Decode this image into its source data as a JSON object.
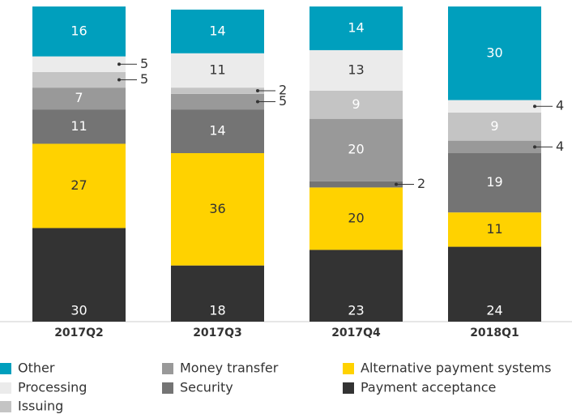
{
  "chart_data": {
    "type": "stacked_bar",
    "categories": [
      "2017Q2",
      "2017Q3",
      "2017Q4",
      "2018Q1"
    ],
    "series": [
      {
        "name": "Payment acceptance",
        "color": "#333333",
        "values": [
          30,
          18,
          23,
          24
        ]
      },
      {
        "name": "Alternative payment systems",
        "color": "#ffd200",
        "values": [
          27,
          36,
          20,
          11
        ]
      },
      {
        "name": "Security",
        "color": "#747474",
        "values": [
          11,
          14,
          2,
          19
        ]
      },
      {
        "name": "Money transfer",
        "color": "#999999",
        "values": [
          7,
          5,
          20,
          4
        ]
      },
      {
        "name": "Issuing",
        "color": "#c4c4c4",
        "values": [
          5,
          2,
          9,
          9
        ]
      },
      {
        "name": "Processing",
        "color": "#ebebeb",
        "values": [
          5,
          11,
          13,
          4
        ]
      },
      {
        "name": "Other",
        "color": "#009fbd",
        "values": [
          16,
          14,
          14,
          30
        ]
      }
    ],
    "ylim": [
      0,
      101
    ]
  }
}
